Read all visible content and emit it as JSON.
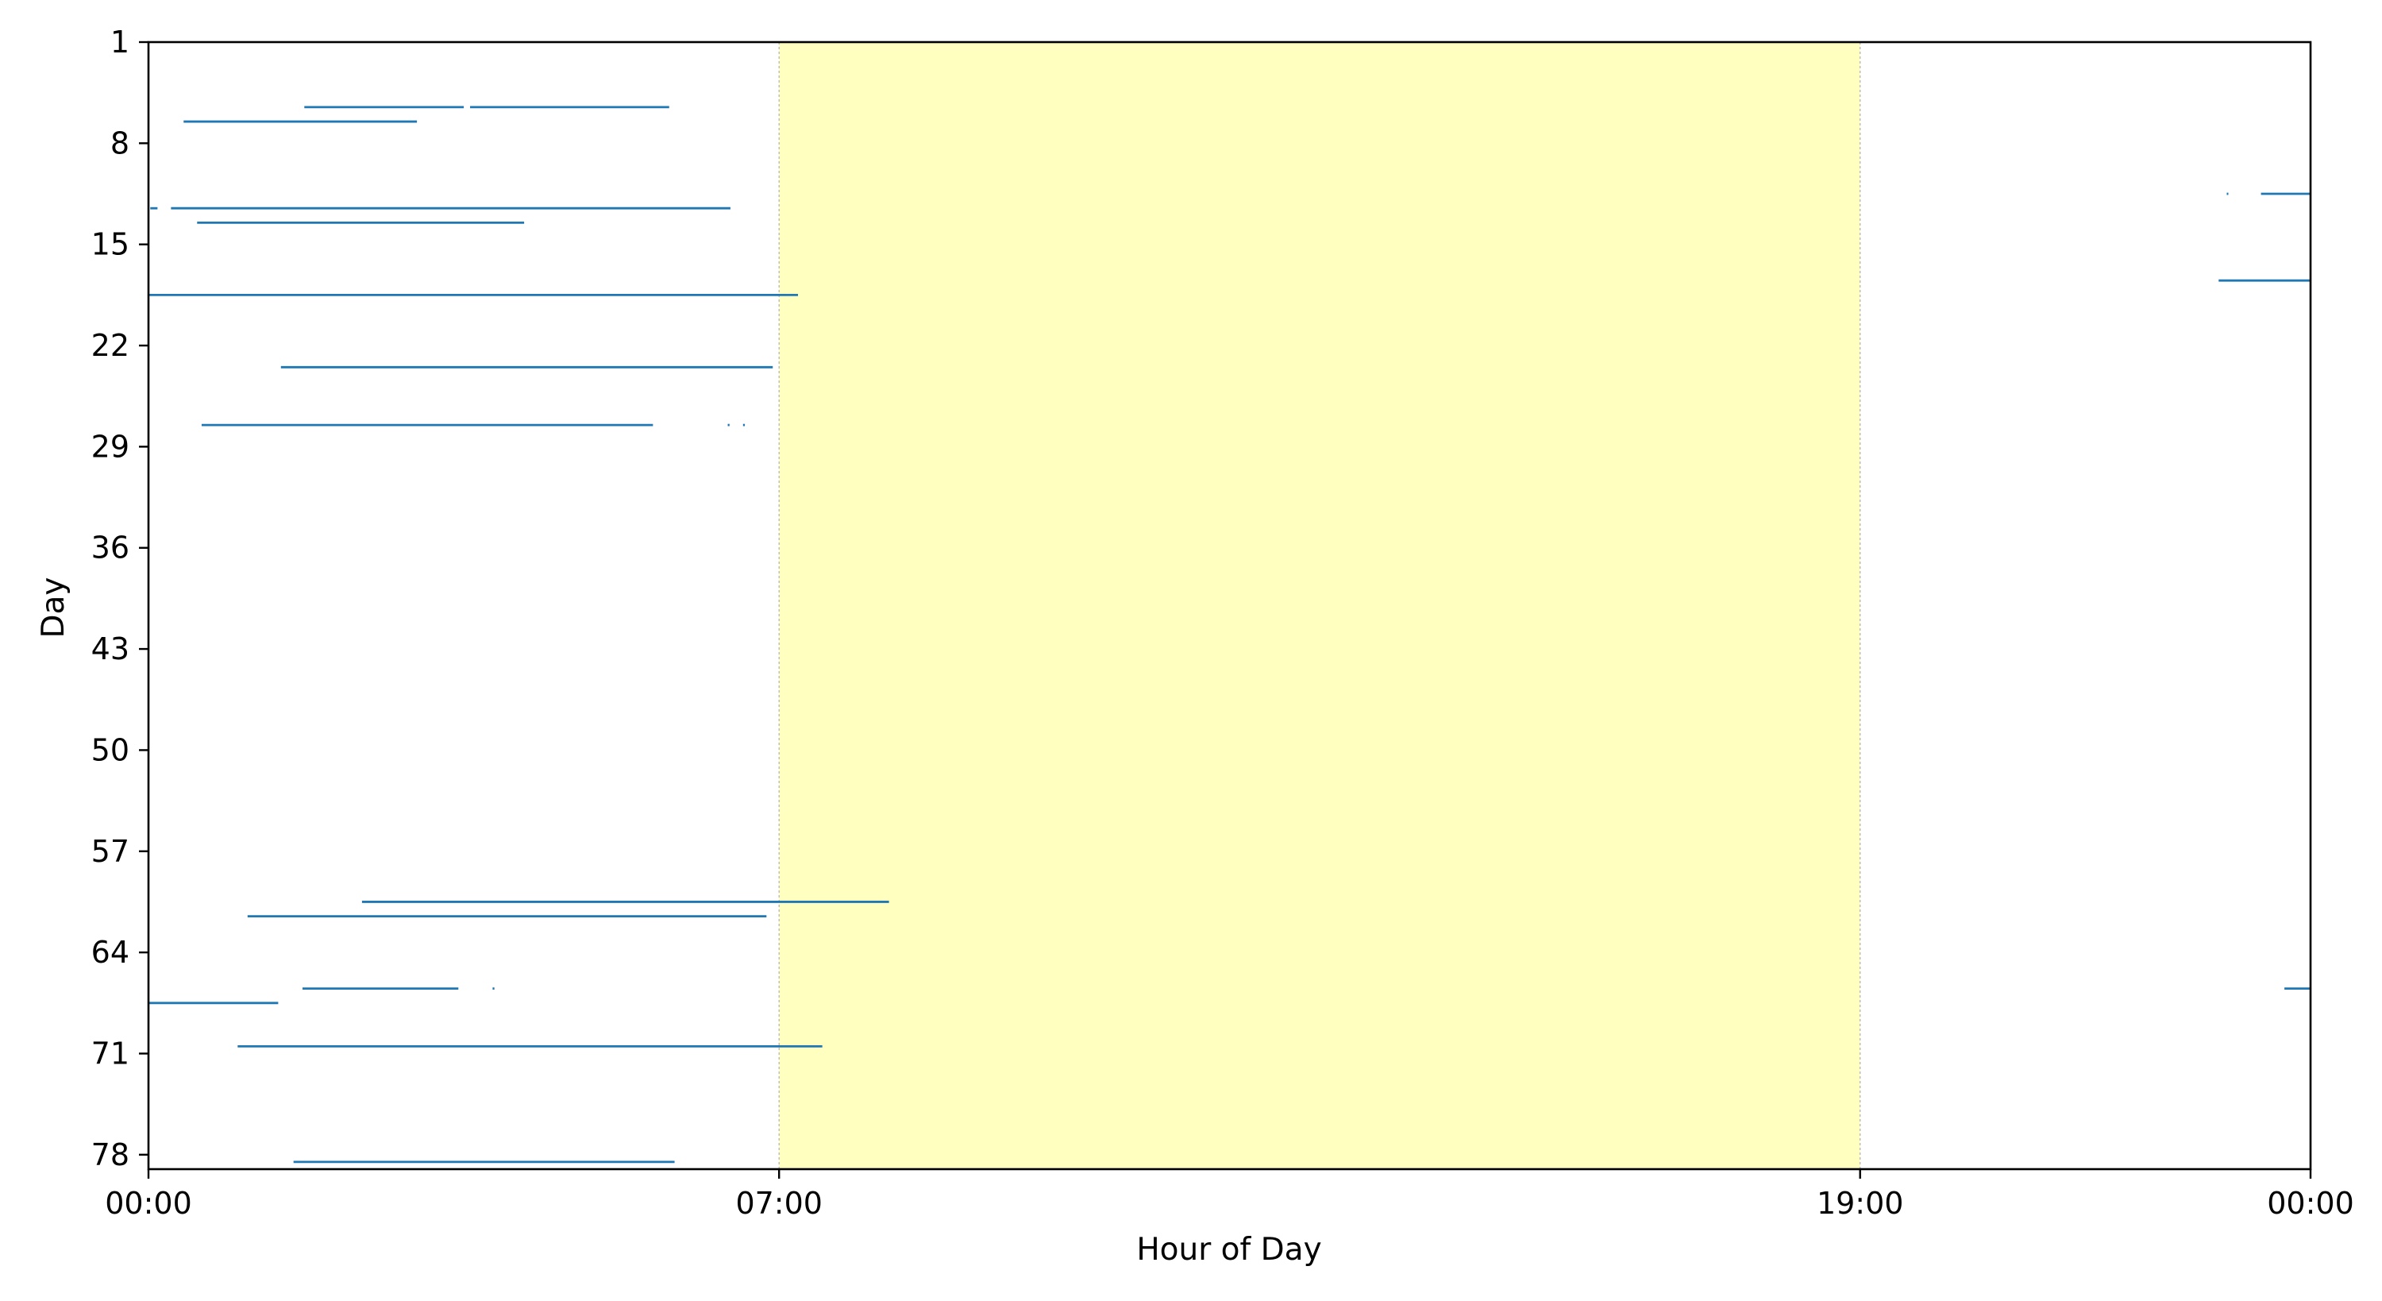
{
  "chart_data": {
    "type": "gantt",
    "xlabel": "Hour of Day",
    "ylabel": "Day",
    "xlim": [
      0,
      24
    ],
    "ylim": [
      79,
      1
    ],
    "x_ticks": [
      {
        "value": 0,
        "label": "00:00"
      },
      {
        "value": 7,
        "label": "07:00"
      },
      {
        "value": 19,
        "label": "19:00"
      },
      {
        "value": 24,
        "label": "00:00"
      }
    ],
    "y_ticks": [
      1,
      8,
      15,
      22,
      29,
      36,
      43,
      50,
      57,
      64,
      71,
      78
    ],
    "highlight": {
      "start": 7,
      "end": 19,
      "color": "#ffffc0"
    },
    "line_color": "#1f77b4",
    "segments": [
      {
        "day": 5.5,
        "start": 1.73,
        "end": 3.5
      },
      {
        "day": 5.5,
        "start": 3.57,
        "end": 5.78
      },
      {
        "day": 6.5,
        "start": 0.39,
        "end": 2.98
      },
      {
        "day": 11.5,
        "start": 23.07,
        "end": 23.08
      },
      {
        "day": 11.5,
        "start": 23.45,
        "end": 24.0
      },
      {
        "day": 12.5,
        "start": 0.02,
        "end": 0.1
      },
      {
        "day": 12.5,
        "start": 0.25,
        "end": 6.46
      },
      {
        "day": 13.5,
        "start": 0.54,
        "end": 4.17
      },
      {
        "day": 17.5,
        "start": 22.98,
        "end": 24.0
      },
      {
        "day": 18.5,
        "start": 0.0,
        "end": 7.21
      },
      {
        "day": 23.5,
        "start": 1.47,
        "end": 6.93
      },
      {
        "day": 27.5,
        "start": 0.59,
        "end": 5.6
      },
      {
        "day": 27.5,
        "start": 6.43,
        "end": 6.45
      },
      {
        "day": 27.5,
        "start": 6.6,
        "end": 6.62
      },
      {
        "day": 60.5,
        "start": 2.37,
        "end": 8.22
      },
      {
        "day": 61.5,
        "start": 1.1,
        "end": 6.86
      },
      {
        "day": 66.5,
        "start": 1.71,
        "end": 3.44
      },
      {
        "day": 66.5,
        "start": 3.82,
        "end": 3.84
      },
      {
        "day": 66.5,
        "start": 23.71,
        "end": 24.0
      },
      {
        "day": 67.5,
        "start": 0.0,
        "end": 1.44
      },
      {
        "day": 70.5,
        "start": 0.99,
        "end": 7.48
      },
      {
        "day": 78.5,
        "start": 1.61,
        "end": 5.84
      }
    ]
  }
}
